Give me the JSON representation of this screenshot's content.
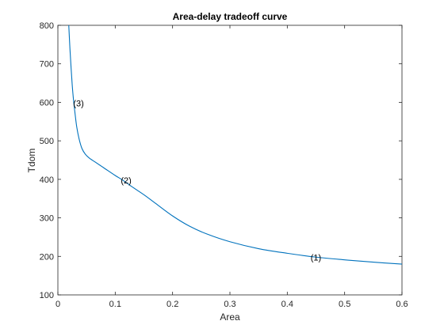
{
  "chart_data": {
    "type": "line",
    "title": "Area-delay tradeoff curve",
    "xlabel": "Area",
    "ylabel": "Tdom",
    "xlim": [
      0,
      0.6
    ],
    "ylim": [
      100,
      800
    ],
    "xticks": [
      0,
      0.1,
      0.2,
      0.3,
      0.4,
      0.5,
      0.6
    ],
    "xtick_labels": [
      "0",
      "0.1",
      "0.2",
      "0.3",
      "0.4",
      "0.5",
      "0.6"
    ],
    "yticks": [
      100,
      200,
      300,
      400,
      500,
      600,
      700,
      800
    ],
    "ytick_labels": [
      "100",
      "200",
      "300",
      "400",
      "500",
      "600",
      "700",
      "800"
    ],
    "grid": false,
    "series_color": "#0072BD",
    "series": [
      {
        "x": [
          0.019,
          0.021,
          0.023,
          0.025,
          0.027,
          0.03,
          0.033,
          0.037,
          0.042,
          0.048,
          0.055,
          0.065,
          0.08,
          0.1,
          0.113,
          0.13,
          0.15,
          0.17,
          0.2,
          0.23,
          0.26,
          0.3,
          0.35,
          0.4,
          0.45,
          0.5,
          0.55,
          0.6
        ],
        "y": [
          800,
          740,
          690,
          645,
          610,
          570,
          535,
          505,
          480,
          465,
          455,
          445,
          430,
          410,
          398,
          380,
          360,
          338,
          305,
          278,
          258,
          238,
          220,
          208,
          198,
          191,
          185,
          180
        ]
      }
    ],
    "annotations": [
      {
        "text": "(1)",
        "x": 0.45,
        "y": 198
      },
      {
        "text": "(2)",
        "x": 0.119,
        "y": 398
      },
      {
        "text": "(3)",
        "x": 0.036,
        "y": 598
      }
    ]
  }
}
